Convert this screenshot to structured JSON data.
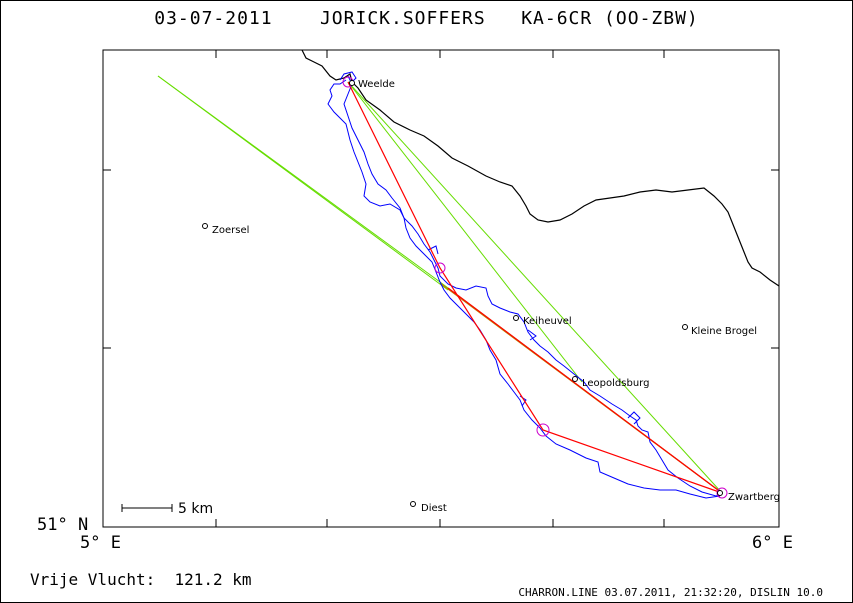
{
  "header": {
    "date": "03-07-2011",
    "pilot": "JORICK.SOFFERS",
    "glider": "KA-6CR (OO-ZBW)"
  },
  "axes": {
    "lat_label": "51° N",
    "lon_left_label": "5° E",
    "lon_right_label": "6° E"
  },
  "scale_bar": {
    "label": "5 km"
  },
  "places": [
    {
      "name": "Weelde"
    },
    {
      "name": "Zoersel"
    },
    {
      "name": "Keiheuvel"
    },
    {
      "name": "Kleine Brogel"
    },
    {
      "name": "Leopoldsburg"
    },
    {
      "name": "Zwartberg"
    },
    {
      "name": "Diest"
    }
  ],
  "stats": {
    "free_flight_label": "Vrije Vlucht:",
    "free_flight_value": "121.2 km"
  },
  "footer": {
    "text": "CHARRON.LINE 03.07.2011, 21:32:20, DISLIN 10.0"
  },
  "colors": {
    "track": "#0000ff",
    "task": "#ff0000",
    "sector": "#66dd00",
    "leg": "#c08000",
    "turnpoint": "#cc00cc",
    "border": "#000000"
  }
}
